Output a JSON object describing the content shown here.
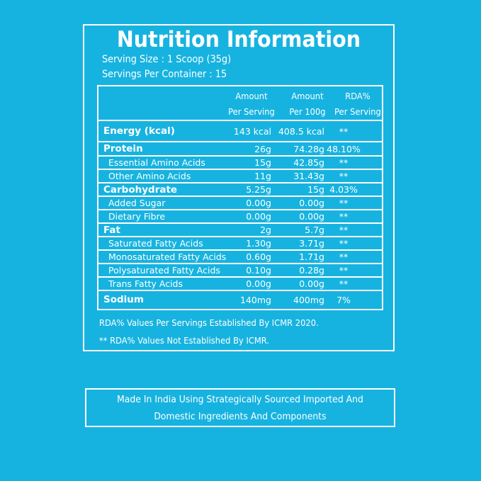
{
  "title": "Nutrition Information",
  "serving_size": "Serving Size : 1 Scoop (35g)",
  "servings_per_container": "Servings Per Container : 15",
  "header": {
    "col1_line1": "Amount",
    "col1_line2": "Per Serving",
    "col2_line1": "Amount",
    "col2_line2": "Per 100g",
    "col3_line1": "RDA%",
    "col3_line2": "Per Serving"
  },
  "rows": [
    {
      "name": "Energy (kcal)",
      "per_serving": "143 kcal",
      "per_100g": "408.5 kcal",
      "rda": "**"
    },
    {
      "name": "Protein",
      "per_serving": "26g",
      "per_100g": "74.28g",
      "rda": "48.10%"
    },
    {
      "name": "Essential Amino Acids",
      "per_serving": "15g",
      "per_100g": "42.85g",
      "rda": "**"
    },
    {
      "name": "Other Amino Acids",
      "per_serving": "11g",
      "per_100g": "31.43g",
      "rda": "**"
    },
    {
      "name": "Carbohydrate",
      "per_serving": "5.25g",
      "per_100g": "15g",
      "rda": "4.03%"
    },
    {
      "name": "Added Sugar",
      "per_serving": "0.00g",
      "per_100g": "0.00g",
      "rda": "**"
    },
    {
      "name": "Dietary Fibre",
      "per_serving": "0.00g",
      "per_100g": "0.00g",
      "rda": "**"
    },
    {
      "name": "Fat",
      "per_serving": "2g",
      "per_100g": "5.7g",
      "rda": "**"
    },
    {
      "name": "Saturated Fatty Acids",
      "per_serving": "1.30g",
      "per_100g": "3.71g",
      "rda": "**"
    },
    {
      "name": "Monosaturated Fatty Acids",
      "per_serving": "0.60g",
      "per_100g": "1.71g",
      "rda": "**"
    },
    {
      "name": "Polysaturated Fatty Acids",
      "per_serving": "0.10g",
      "per_100g": "0.28g",
      "rda": "**"
    },
    {
      "name": "Trans Fatty Acids",
      "per_serving": "0.00g",
      "per_100g": "0.00g",
      "rda": "**"
    },
    {
      "name": "Sodium",
      "per_serving": "140mg",
      "per_100g": "400mg",
      "rda": "7%"
    }
  ],
  "notes": {
    "note1": "RDA% Values Per Servings Established By ICMR 2020.",
    "note2": "** RDA% Values Not Established By ICMR."
  },
  "footer": {
    "line1": "Made In India Using Strategically Sourced Imported And",
    "line2": "Domestic Ingredients And Components"
  },
  "colors": {
    "background": "#17b3e0",
    "foreground": "#ffffff"
  }
}
